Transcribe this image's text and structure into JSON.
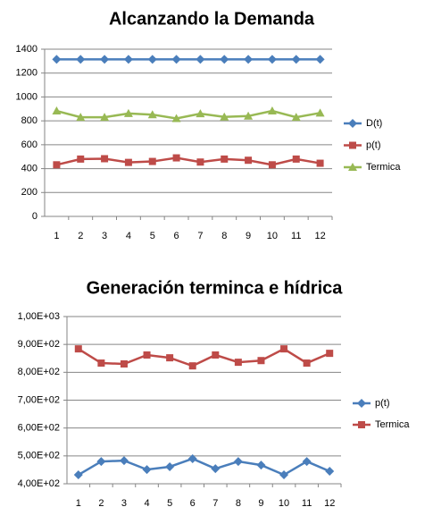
{
  "chart_data": [
    {
      "type": "line",
      "title": "Alcanzando la Demanda",
      "categories": [
        "1",
        "2",
        "3",
        "4",
        "5",
        "6",
        "7",
        "8",
        "9",
        "10",
        "11",
        "12"
      ],
      "series": [
        {
          "name": "D(t)",
          "color": "#4a7ebb",
          "marker": "diamond",
          "values": [
            1315,
            1315,
            1315,
            1315,
            1315,
            1315,
            1315,
            1315,
            1315,
            1315,
            1315,
            1315
          ]
        },
        {
          "name": "p(t)",
          "color": "#be4b48",
          "marker": "square",
          "values": [
            432,
            480,
            483,
            452,
            460,
            490,
            455,
            480,
            470,
            432,
            480,
            445
          ]
        },
        {
          "name": "Termica",
          "color": "#98b954",
          "marker": "triangle",
          "values": [
            883,
            830,
            830,
            862,
            852,
            820,
            860,
            833,
            840,
            883,
            830,
            866
          ]
        }
      ],
      "ylim": [
        0,
        1400
      ],
      "yticks": [
        0,
        200,
        400,
        600,
        800,
        1000,
        1200,
        1400
      ],
      "grid": true,
      "legend": "right"
    },
    {
      "type": "line",
      "title": "Generación terminca e hídrica",
      "categories": [
        "1",
        "2",
        "3",
        "4",
        "5",
        "6",
        "7",
        "8",
        "9",
        "10",
        "11",
        "12"
      ],
      "series": [
        {
          "name": "p(t)",
          "color": "#4a7ebb",
          "marker": "diamond",
          "values": [
            432,
            480,
            483,
            451,
            461,
            490,
            454,
            480,
            467,
            432,
            480,
            445
          ]
        },
        {
          "name": "Termica",
          "color": "#be4b48",
          "marker": "square",
          "values": [
            884,
            833,
            830,
            862,
            852,
            823,
            862,
            836,
            842,
            884,
            833,
            868
          ]
        }
      ],
      "ylim": [
        400,
        1000
      ],
      "yticks": [
        {
          "value": 400,
          "label": "4,00E+02"
        },
        {
          "value": 500,
          "label": "5,00E+02"
        },
        {
          "value": 600,
          "label": "6,00E+02"
        },
        {
          "value": 700,
          "label": "7,00E+02"
        },
        {
          "value": 800,
          "label": "8,00E+02"
        },
        {
          "value": 900,
          "label": "9,00E+02"
        },
        {
          "value": 1000,
          "label": "1,00E+03"
        }
      ],
      "grid": true,
      "legend": "right"
    }
  ]
}
